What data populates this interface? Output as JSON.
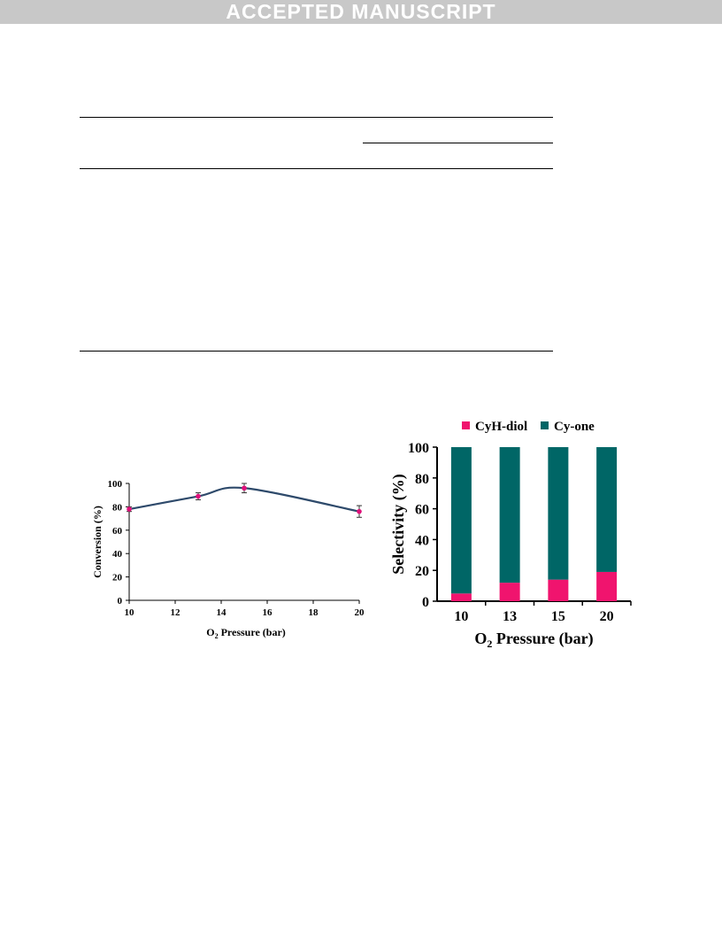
{
  "banner": {
    "text": "ACCEPTED MANUSCRIPT"
  },
  "chart_data": [
    {
      "type": "line",
      "title": "",
      "xlabel_main": "O",
      "xlabel_sub": "2",
      "xlabel_rest": " Pressure (bar)",
      "ylabel": "Conversion (%)",
      "xlim": [
        10,
        20
      ],
      "ylim": [
        0,
        100
      ],
      "xticks": [
        "10",
        "12",
        "14",
        "16",
        "18",
        "20"
      ],
      "yticks": [
        "0",
        "20",
        "40",
        "60",
        "80",
        "100"
      ],
      "x": [
        10,
        13,
        15,
        20
      ],
      "y": [
        78,
        89,
        96,
        76
      ],
      "error": [
        2,
        3,
        4,
        5
      ],
      "line_color": "#2e4a6b",
      "marker_color": "#e0107a",
      "grid": false
    },
    {
      "type": "bar",
      "stacked": true,
      "title": "",
      "xlabel_main": "O",
      "xlabel_sub": "2",
      "xlabel_rest": " Pressure (bar)",
      "ylabel": "Selectivity (%)",
      "ylim": [
        0,
        100
      ],
      "yticks": [
        "0",
        "20",
        "40",
        "60",
        "80",
        "100"
      ],
      "categories": [
        "10",
        "13",
        "15",
        "20"
      ],
      "legend_position": "top",
      "series": [
        {
          "name": "CyH-diol",
          "values": [
            5,
            12,
            14,
            19
          ],
          "color": "#f0146e"
        },
        {
          "name": "Cy-one",
          "values": [
            95,
            88,
            86,
            81
          ],
          "color": "#006666"
        }
      ],
      "grid": false
    }
  ]
}
